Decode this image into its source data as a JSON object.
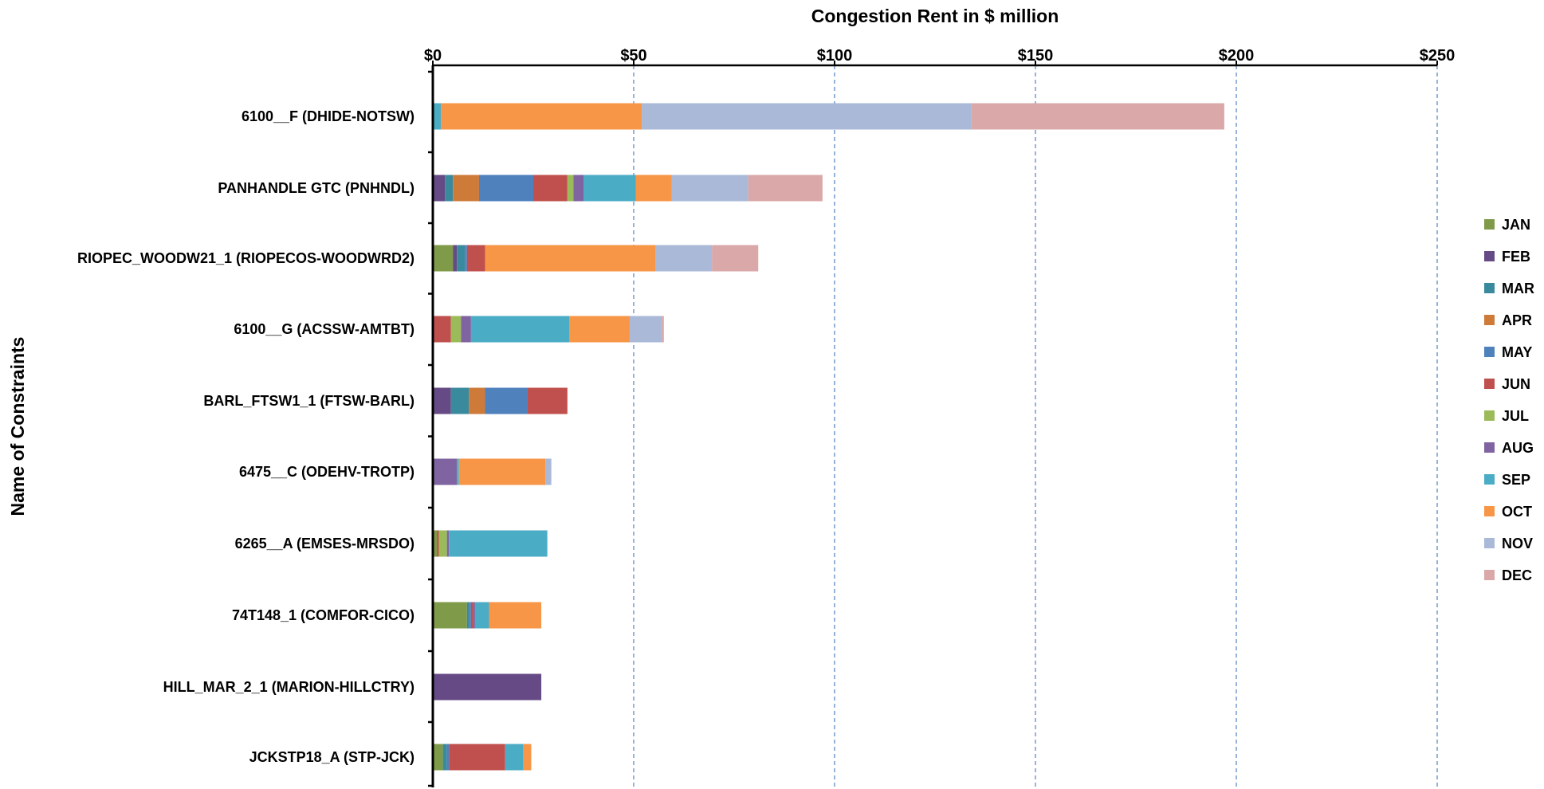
{
  "chart_data": {
    "type": "bar",
    "orientation": "horizontal",
    "stacked": true,
    "title": "",
    "xlabel": "Congestion Rent in $ million",
    "ylabel": "Name of Constraints",
    "xlim": [
      0,
      250
    ],
    "xticks": [
      0,
      50,
      100,
      150,
      200,
      250
    ],
    "xtick_labels": [
      "$0",
      "$50",
      "$100",
      "$150",
      "$200",
      "$250"
    ],
    "x_axis_position": "top",
    "grid": "vertical dashed",
    "legend_position": "right",
    "categories": [
      "6100__F (DHIDE-NOTSW)",
      "PANHANDLE GTC (PNHNDL)",
      "RIOPEC_WOODW21_1 (RIOPECOS-WOODWRD2)",
      "6100__G (ACSSW-AMTBT)",
      "BARL_FTSW1_1 (FTSW-BARL)",
      "6475__C (ODEHV-TROTP)",
      "6265__A (EMSES-MRSDO)",
      "74T148_1 (COMFOR-CICO)",
      "HILL_MAR_2_1 (MARION-HILLCTRY)",
      "JCKSTP18_A (STP-JCK)"
    ],
    "series": [
      {
        "name": "JAN",
        "color": "#7F9A48",
        "values": [
          0,
          0,
          5.0,
          0,
          0,
          0,
          1.0,
          8.5,
          0,
          2.5
        ]
      },
      {
        "name": "FEB",
        "color": "#664A85",
        "values": [
          0,
          3.0,
          1.0,
          0,
          4.5,
          0,
          0,
          0,
          27.0,
          0
        ]
      },
      {
        "name": "MAR",
        "color": "#3A8A9E",
        "values": [
          0,
          2.0,
          2.0,
          0,
          4.5,
          0,
          0,
          0.5,
          0,
          1.0
        ]
      },
      {
        "name": "APR",
        "color": "#CE7B3A",
        "values": [
          0,
          6.5,
          0,
          0,
          4.0,
          0,
          0,
          0,
          0,
          0
        ]
      },
      {
        "name": "MAY",
        "color": "#4F81BD",
        "values": [
          0,
          13.5,
          0.5,
          0,
          10.5,
          0,
          0,
          0.5,
          0,
          0.5
        ]
      },
      {
        "name": "JUN",
        "color": "#C0504D",
        "values": [
          0,
          8.5,
          4.5,
          4.5,
          10.0,
          0,
          0.5,
          0.5,
          0,
          14.0
        ]
      },
      {
        "name": "JUL",
        "color": "#9BBB59",
        "values": [
          0,
          1.5,
          0,
          2.5,
          0,
          0,
          2.0,
          0,
          0,
          0
        ]
      },
      {
        "name": "AUG",
        "color": "#8064A2",
        "values": [
          0,
          2.5,
          0,
          2.5,
          0,
          6.0,
          0.5,
          0.5,
          0,
          0
        ]
      },
      {
        "name": "SEP",
        "color": "#4BACC6",
        "values": [
          2.0,
          13.0,
          0,
          24.5,
          0,
          0.5,
          24.5,
          3.5,
          0,
          4.5
        ]
      },
      {
        "name": "OCT",
        "color": "#F79646",
        "values": [
          50.0,
          9.0,
          42.5,
          15.0,
          0,
          21.5,
          0,
          13.0,
          0,
          2.0
        ]
      },
      {
        "name": "NOV",
        "color": "#A9B9D7",
        "values": [
          82.0,
          19.0,
          14.0,
          8.0,
          0,
          1.5,
          0,
          0,
          0,
          0
        ]
      },
      {
        "name": "DEC",
        "color": "#DAA8A8",
        "values": [
          63.0,
          18.5,
          11.5,
          0.5,
          0,
          0,
          0,
          0,
          0,
          0
        ]
      }
    ]
  }
}
